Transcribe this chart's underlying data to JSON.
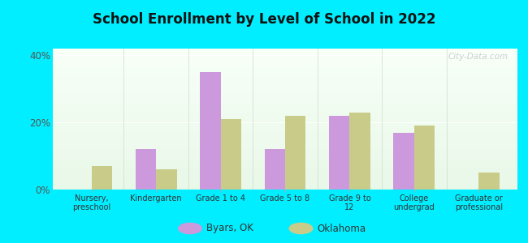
{
  "title": "School Enrollment by Level of School in 2022",
  "categories": [
    "Nursery,\npreschool",
    "Kindergarten",
    "Grade 1 to 4",
    "Grade 5 to 8",
    "Grade 9 to\n12",
    "College\nundergrad",
    "Graduate or\nprofessional"
  ],
  "byars_values": [
    0,
    12,
    35,
    12,
    22,
    17,
    0
  ],
  "oklahoma_values": [
    7,
    6,
    21,
    22,
    23,
    19,
    5
  ],
  "byars_color": "#cc99dd",
  "oklahoma_color": "#c8cc88",
  "ylim": [
    0,
    42
  ],
  "yticks": [
    0,
    20,
    40
  ],
  "ytick_labels": [
    "0%",
    "20%",
    "40%"
  ],
  "background_color": "#00EEFF",
  "legend_byars": "Byars, OK",
  "legend_oklahoma": "Oklahoma",
  "watermark": "City-Data.com",
  "bar_width": 0.32
}
